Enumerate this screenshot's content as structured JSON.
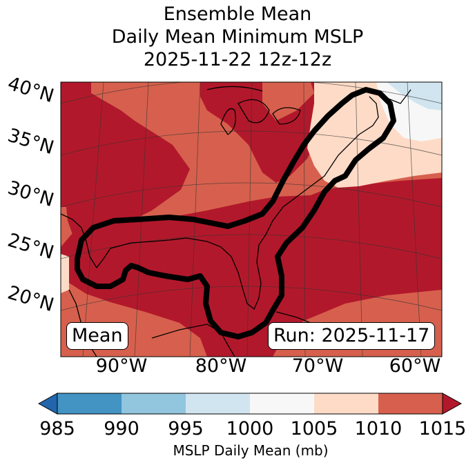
{
  "title": {
    "line1": "Ensemble Mean",
    "line2": "Daily Mean Minimum MSLP",
    "line3": "2025-11-22 12z-12z"
  },
  "map": {
    "latitude_labels": [
      "40°N",
      "35°N",
      "30°N",
      "25°N",
      "20°N"
    ],
    "longitude_labels": [
      "90°W",
      "80°W",
      "70°W",
      "60°W"
    ],
    "mean_label": "Mean",
    "run_label": "Run: 2025-11-17",
    "contour_color": "#000000",
    "region_colors": {
      "1010_1015": "#b2182b",
      "1005_1010": "#d6604d",
      "1000_1005": "#fddbc7",
      "995_1000": "#f7f7f7",
      "990_995": "#d1e5f0"
    }
  },
  "colorbar": {
    "ticks": [
      "985",
      "990",
      "995",
      "1000",
      "1005",
      "1010",
      "1015"
    ],
    "label": "MSLP Daily Mean (mb)",
    "colors": [
      "#2166ac",
      "#4393c3",
      "#92c5de",
      "#d1e5f0",
      "#f7f7f7",
      "#fddbc7",
      "#d6604d",
      "#b2182b"
    ]
  }
}
